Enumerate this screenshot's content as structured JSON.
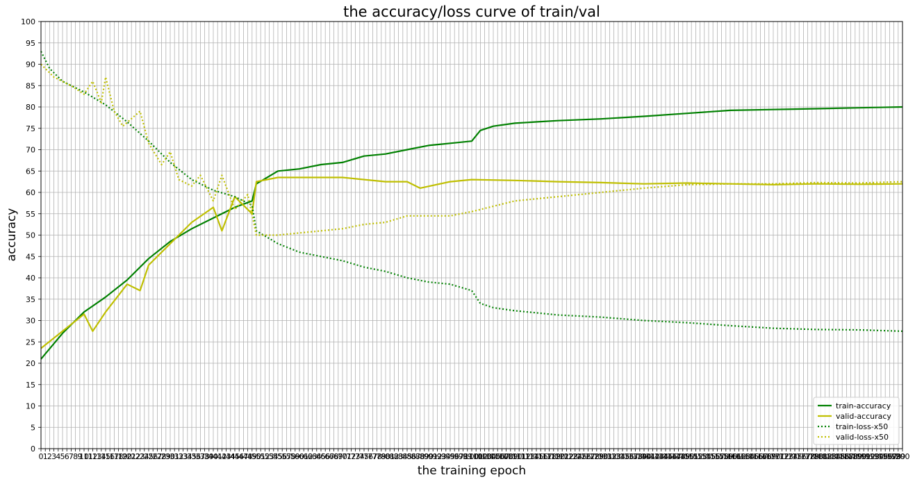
{
  "chart_data": {
    "type": "line",
    "title": "the accuracy/loss curve of train/val",
    "xlabel": "the training epoch",
    "ylabel": "accuracy",
    "xlim": [
      0,
      200
    ],
    "ylim": [
      0,
      100
    ],
    "yticks": [
      0,
      5,
      10,
      15,
      20,
      25,
      30,
      35,
      40,
      45,
      50,
      55,
      60,
      65,
      70,
      75,
      80,
      85,
      90,
      95,
      100
    ],
    "xtick_step": 1,
    "grid": true,
    "legend_position": "lower-right",
    "series": [
      {
        "name": "train-accuracy",
        "color": "#008000",
        "dash": "solid",
        "points": [
          [
            0,
            21
          ],
          [
            5,
            27
          ],
          [
            10,
            32
          ],
          [
            15,
            35.5
          ],
          [
            20,
            39.5
          ],
          [
            25,
            44.5
          ],
          [
            30,
            48.5
          ],
          [
            35,
            51.5
          ],
          [
            40,
            54
          ],
          [
            45,
            56.5
          ],
          [
            49,
            58
          ],
          [
            50,
            62
          ],
          [
            55,
            65
          ],
          [
            60,
            65.5
          ],
          [
            65,
            66.5
          ],
          [
            70,
            67
          ],
          [
            75,
            68.5
          ],
          [
            80,
            69
          ],
          [
            85,
            70
          ],
          [
            90,
            71
          ],
          [
            95,
            71.5
          ],
          [
            100,
            72
          ],
          [
            102,
            74.5
          ],
          [
            105,
            75.5
          ],
          [
            110,
            76.2
          ],
          [
            115,
            76.5
          ],
          [
            120,
            76.8
          ],
          [
            130,
            77.2
          ],
          [
            140,
            77.8
          ],
          [
            150,
            78.5
          ],
          [
            160,
            79.2
          ],
          [
            170,
            79.4
          ],
          [
            180,
            79.6
          ],
          [
            190,
            79.8
          ],
          [
            200,
            80
          ]
        ]
      },
      {
        "name": "valid-accuracy",
        "color": "#bfbf00",
        "dash": "solid",
        "points": [
          [
            0,
            23.5
          ],
          [
            5,
            27.5
          ],
          [
            10,
            31.5
          ],
          [
            12,
            27.5
          ],
          [
            15,
            32
          ],
          [
            20,
            38.5
          ],
          [
            23,
            37
          ],
          [
            25,
            43
          ],
          [
            30,
            48
          ],
          [
            35,
            53
          ],
          [
            40,
            56.5
          ],
          [
            42,
            51
          ],
          [
            45,
            59
          ],
          [
            49,
            55
          ],
          [
            50,
            62.5
          ],
          [
            55,
            63.5
          ],
          [
            60,
            63.5
          ],
          [
            70,
            63.5
          ],
          [
            80,
            62.5
          ],
          [
            85,
            62.5
          ],
          [
            88,
            61
          ],
          [
            95,
            62.5
          ],
          [
            100,
            63
          ],
          [
            110,
            62.8
          ],
          [
            120,
            62.5
          ],
          [
            130,
            62.3
          ],
          [
            140,
            62
          ],
          [
            150,
            62.2
          ],
          [
            160,
            62
          ],
          [
            170,
            61.8
          ],
          [
            180,
            62
          ],
          [
            190,
            61.9
          ],
          [
            200,
            62
          ]
        ]
      },
      {
        "name": "train-loss-x50",
        "color": "#008000",
        "dash": "dotted",
        "points": [
          [
            0,
            93
          ],
          [
            2,
            89
          ],
          [
            5,
            86
          ],
          [
            10,
            83.5
          ],
          [
            15,
            80.5
          ],
          [
            20,
            76.5
          ],
          [
            25,
            72
          ],
          [
            30,
            67
          ],
          [
            35,
            63
          ],
          [
            40,
            60.5
          ],
          [
            45,
            59
          ],
          [
            49,
            57
          ],
          [
            50,
            51
          ],
          [
            55,
            48
          ],
          [
            60,
            46
          ],
          [
            65,
            45
          ],
          [
            70,
            44
          ],
          [
            75,
            42.5
          ],
          [
            80,
            41.5
          ],
          [
            85,
            40
          ],
          [
            90,
            39
          ],
          [
            95,
            38.5
          ],
          [
            100,
            37
          ],
          [
            102,
            34
          ],
          [
            105,
            33
          ],
          [
            110,
            32.3
          ],
          [
            115,
            31.8
          ],
          [
            120,
            31.3
          ],
          [
            130,
            30.8
          ],
          [
            140,
            30
          ],
          [
            150,
            29.5
          ],
          [
            160,
            28.8
          ],
          [
            170,
            28.2
          ],
          [
            180,
            27.9
          ],
          [
            190,
            27.8
          ],
          [
            200,
            27.5
          ]
        ]
      },
      {
        "name": "valid-loss-x50",
        "color": "#bfbf00",
        "dash": "dotted",
        "points": [
          [
            0,
            90
          ],
          [
            3,
            87
          ],
          [
            7,
            85
          ],
          [
            10,
            83
          ],
          [
            12,
            86
          ],
          [
            14,
            81
          ],
          [
            15,
            87
          ],
          [
            17,
            79
          ],
          [
            19,
            75.5
          ],
          [
            23,
            79
          ],
          [
            25,
            71.5
          ],
          [
            28,
            66.5
          ],
          [
            30,
            69.5
          ],
          [
            32,
            63
          ],
          [
            35,
            61.5
          ],
          [
            37,
            64
          ],
          [
            40,
            58
          ],
          [
            42,
            64
          ],
          [
            45,
            56
          ],
          [
            48,
            59.5
          ],
          [
            50,
            50
          ],
          [
            55,
            50
          ],
          [
            60,
            50.5
          ],
          [
            65,
            51
          ],
          [
            70,
            51.5
          ],
          [
            75,
            52.5
          ],
          [
            80,
            53
          ],
          [
            85,
            54.5
          ],
          [
            90,
            54.5
          ],
          [
            95,
            54.5
          ],
          [
            100,
            55.5
          ],
          [
            110,
            58
          ],
          [
            120,
            59
          ],
          [
            130,
            60
          ],
          [
            140,
            61
          ],
          [
            150,
            61.8
          ],
          [
            160,
            62
          ],
          [
            170,
            62
          ],
          [
            180,
            62.3
          ],
          [
            190,
            62.2
          ],
          [
            200,
            62.5
          ]
        ]
      }
    ]
  }
}
